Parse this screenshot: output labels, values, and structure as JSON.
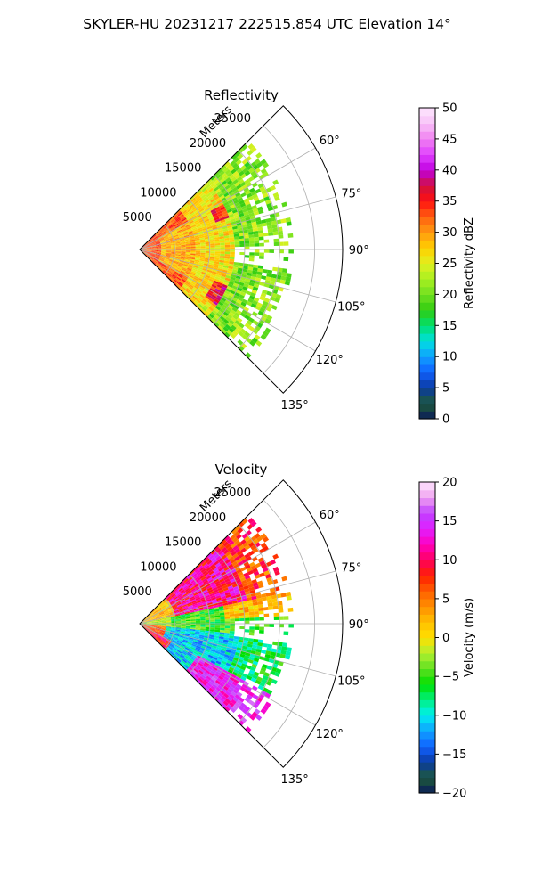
{
  "suptitle": "SKYLER-HU  20231217  222515.854 UTC Elevation 14°",
  "chart_data": [
    {
      "type": "heatmap",
      "projection": "polar-sector",
      "title": "Reflectivity",
      "r_label": "Meters",
      "theta_range_deg": [
        45,
        135
      ],
      "r_range": [
        0,
        29000
      ],
      "r_ticks": [
        5000,
        10000,
        15000,
        20000,
        25000
      ],
      "r_tick_labels": [
        "5000",
        "10000",
        "15000",
        "20000",
        "25000"
      ],
      "theta_ticks_deg": [
        60,
        75,
        90,
        105,
        120,
        135
      ],
      "theta_tick_labels": [
        "60°",
        "75°",
        "90°",
        "105°",
        "120°",
        "135°"
      ],
      "grid": true,
      "field_extent_m": 22000,
      "colorbar": {
        "label": "Reflectivity dBZ",
        "range": [
          0,
          50
        ],
        "ticks": [
          0,
          5,
          10,
          15,
          20,
          25,
          30,
          35,
          40,
          45,
          50
        ],
        "tick_labels": [
          "0",
          "5",
          "10",
          "15",
          "20",
          "25",
          "30",
          "35",
          "40",
          "45",
          "50"
        ],
        "colormap": [
          [
            0,
            "#0a1a5a"
          ],
          [
            2.5,
            "#1e5a3a"
          ],
          [
            5,
            "#0a3aa0"
          ],
          [
            7.5,
            "#1060ff"
          ],
          [
            10,
            "#10a0ff"
          ],
          [
            12.5,
            "#00e0e0"
          ],
          [
            15,
            "#00e070"
          ],
          [
            17.5,
            "#30cc10"
          ],
          [
            20,
            "#70e020"
          ],
          [
            22.5,
            "#a8f020"
          ],
          [
            25,
            "#e0f020"
          ],
          [
            27.5,
            "#ffd000"
          ],
          [
            30,
            "#ff9a10"
          ],
          [
            32.5,
            "#ff6010"
          ],
          [
            35,
            "#ff1010"
          ],
          [
            37.5,
            "#d01040"
          ],
          [
            40,
            "#c000e0"
          ],
          [
            42.5,
            "#e040ff"
          ],
          [
            45,
            "#f080f0"
          ],
          [
            47.5,
            "#f8c0f8"
          ],
          [
            50,
            "#fde6fd"
          ]
        ]
      }
    },
    {
      "type": "heatmap",
      "projection": "polar-sector",
      "title": "Velocity",
      "r_label": "Meters",
      "theta_range_deg": [
        45,
        135
      ],
      "r_range": [
        0,
        29000
      ],
      "r_ticks": [
        5000,
        10000,
        15000,
        20000,
        25000
      ],
      "r_tick_labels": [
        "5000",
        "10000",
        "15000",
        "20000",
        "25000"
      ],
      "theta_ticks_deg": [
        60,
        75,
        90,
        105,
        120,
        135
      ],
      "theta_tick_labels": [
        "60°",
        "75°",
        "90°",
        "105°",
        "120°",
        "135°"
      ],
      "grid": true,
      "field_extent_m": 22000,
      "colorbar": {
        "label": "Velocity (m/s)",
        "range": [
          -20,
          20
        ],
        "ticks": [
          -20,
          -15,
          -10,
          -5,
          0,
          5,
          10,
          15,
          20
        ],
        "tick_labels": [
          "−20",
          "−15",
          "−10",
          "−5",
          "0",
          "5",
          "10",
          "15",
          "20"
        ],
        "colormap": [
          [
            -20,
            "#0a1a5a"
          ],
          [
            -18,
            "#1e5a3a"
          ],
          [
            -16,
            "#0a3aa0"
          ],
          [
            -14,
            "#1060ff"
          ],
          [
            -12,
            "#10a0ff"
          ],
          [
            -10,
            "#00f0f0"
          ],
          [
            -8,
            "#00f080"
          ],
          [
            -6,
            "#00e000"
          ],
          [
            -4,
            "#60e020"
          ],
          [
            -2,
            "#b0f030"
          ],
          [
            0,
            "#ffe000"
          ],
          [
            2,
            "#ffc000"
          ],
          [
            4,
            "#ff9000"
          ],
          [
            6,
            "#ff6000"
          ],
          [
            8,
            "#ff2000"
          ],
          [
            10,
            "#ff0060"
          ],
          [
            12,
            "#ff00c0"
          ],
          [
            14,
            "#e020ff"
          ],
          [
            16,
            "#c040ff"
          ],
          [
            18,
            "#f0a0f0"
          ],
          [
            20,
            "#fde6fd"
          ]
        ]
      }
    }
  ]
}
